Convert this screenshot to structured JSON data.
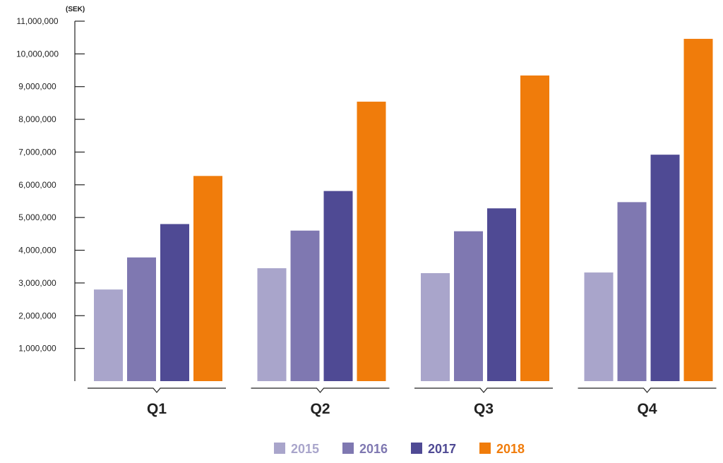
{
  "chart_data": {
    "type": "bar",
    "unit_label": "(SEK)",
    "categories": [
      "Q1",
      "Q2",
      "Q3",
      "Q4"
    ],
    "ylim": [
      0,
      11000000
    ],
    "yticks": [
      1000000,
      2000000,
      3000000,
      4000000,
      5000000,
      6000000,
      7000000,
      8000000,
      9000000,
      10000000,
      11000000
    ],
    "ytick_labels": [
      "1,000,000",
      "2,000,000",
      "3,000,000",
      "4,000,000",
      "5,000,000",
      "6,000,000",
      "7,000,000",
      "8,000,000",
      "9,000,000",
      "10,000,000",
      "11,000,000"
    ],
    "grid": false,
    "legend_position": "bottom-center",
    "series": [
      {
        "name": "2015",
        "color": "#a9a5cb",
        "values": [
          2800000,
          3450000,
          3300000,
          3320000
        ]
      },
      {
        "name": "2016",
        "color": "#7f78b1",
        "values": [
          3780000,
          4600000,
          4580000,
          5470000
        ]
      },
      {
        "name": "2017",
        "color": "#4f4a94",
        "values": [
          4800000,
          5810000,
          5280000,
          6920000
        ]
      },
      {
        "name": "2018",
        "color": "#f07c0b",
        "values": [
          6270000,
          8540000,
          9340000,
          10460000
        ]
      }
    ]
  }
}
